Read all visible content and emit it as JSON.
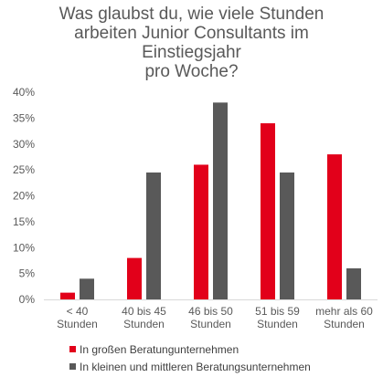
{
  "chart_data": {
    "type": "bar",
    "title_lines": [
      "Was glaubst du, wie viele Stunden",
      "arbeiten Junior Consultants im",
      "Einstiegsjahr",
      "pro Woche?"
    ],
    "categories": [
      [
        "< 40",
        "Stunden"
      ],
      [
        "40 bis 45",
        "Stunden"
      ],
      [
        "46 bis 50",
        "Stunden"
      ],
      [
        "51 bis 59",
        "Stunden"
      ],
      [
        "mehr als 60",
        "Stunden"
      ]
    ],
    "series": [
      {
        "name": "In großen Beratungunternehmen",
        "color": "#e2001a",
        "values": [
          1.3,
          8.0,
          26.0,
          34.0,
          28.0
        ]
      },
      {
        "name": "In kleinen und mittleren Beratungsunternehmen",
        "color": "#595959",
        "values": [
          4.0,
          24.5,
          38.0,
          24.5,
          6.0
        ]
      }
    ],
    "ylim": [
      0,
      40
    ],
    "yticks": [
      0,
      5,
      10,
      15,
      20,
      25,
      30,
      35,
      40
    ],
    "ytick_format": "{v}%",
    "grid": false,
    "legend_position": "bottom-left"
  }
}
